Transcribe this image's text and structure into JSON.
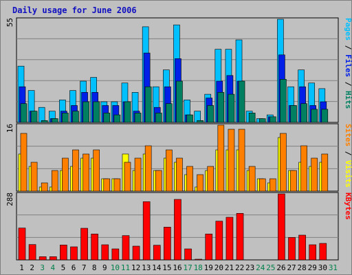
{
  "title": "Daily usage for June 2006",
  "colors": {
    "background": "#ffffff",
    "frame": "#c0c0c0",
    "plot_bg": "#c0c0c0",
    "grid": "#808080",
    "pages": "#008060",
    "files": "#0020e8",
    "hits": "#00c0ff",
    "sites": "#ff8000",
    "visits": "#ffff00",
    "kbytes": "#ff0000",
    "separator": "/",
    "weekday": "#000000",
    "weekend": "#00804a",
    "title": "#1010c0"
  },
  "chart_data": [
    {
      "type": "bar",
      "name": "hits-files-pages",
      "ymax_label": "55",
      "ylim": [
        0,
        55
      ],
      "side_labels": [
        {
          "text": "Pages",
          "color": "#00c0ff"
        },
        {
          "text": " / ",
          "color": "#000000"
        },
        {
          "text": "Files",
          "color": "#0020e8"
        },
        {
          "text": " / ",
          "color": "#000000"
        },
        {
          "text": "Hits",
          "color": "#008060"
        }
      ],
      "categories": [
        "1",
        "2",
        "3",
        "4",
        "5",
        "6",
        "7",
        "8",
        "9",
        "10",
        "11",
        "12",
        "13",
        "14",
        "15",
        "16",
        "17",
        "18",
        "19",
        "20",
        "21",
        "22",
        "23",
        "24",
        "25",
        "26",
        "27",
        "28",
        "29",
        "30",
        "31"
      ],
      "series": [
        {
          "key": "hits",
          "values": [
            30,
            17,
            8,
            6,
            12,
            17,
            22,
            24,
            11,
            11,
            21,
            16,
            51,
            19,
            28,
            52,
            12,
            6,
            15,
            39,
            39,
            44,
            6,
            2,
            4,
            55,
            19,
            28,
            21,
            18,
            0
          ]
        },
        {
          "key": "files",
          "values": [
            19,
            6,
            0,
            2,
            6,
            9,
            16,
            16,
            9,
            9,
            11,
            6,
            37,
            8,
            19,
            34,
            4,
            0,
            13,
            22,
            25,
            22,
            0,
            0,
            3,
            36,
            9,
            19,
            9,
            11,
            0
          ]
        },
        {
          "key": "pages",
          "values": [
            10,
            6,
            1,
            2,
            5,
            6,
            11,
            11,
            5,
            4,
            11,
            5,
            19,
            5,
            10,
            22,
            4,
            1,
            9,
            16,
            15,
            22,
            5,
            2,
            3,
            23,
            9,
            10,
            7,
            7,
            0
          ]
        }
      ]
    },
    {
      "type": "bar",
      "name": "visits-sites",
      "ymax_label": "16",
      "ylim": [
        0,
        16
      ],
      "side_labels": [
        {
          "text": "Sites",
          "color": "#ff8000"
        },
        {
          "text": " / ",
          "color": "#000000"
        },
        {
          "text": "Visits",
          "color": "#ffff00"
        }
      ],
      "categories": [
        "1",
        "2",
        "3",
        "4",
        "5",
        "6",
        "7",
        "8",
        "9",
        "10",
        "11",
        "12",
        "13",
        "14",
        "15",
        "16",
        "17",
        "18",
        "19",
        "20",
        "21",
        "22",
        "23",
        "24",
        "25",
        "26",
        "27",
        "28",
        "29",
        "30",
        "31"
      ],
      "series": [
        {
          "key": "visits",
          "values": [
            9,
            6,
            1,
            1,
            5,
            6,
            8,
            8,
            3,
            3,
            9,
            5,
            9,
            5,
            8,
            7,
            4,
            1,
            5,
            10,
            10,
            10,
            5,
            3,
            2,
            13,
            5,
            7,
            6,
            7,
            0
          ]
        },
        {
          "key": "sites",
          "values": [
            14,
            7,
            2,
            5,
            8,
            10,
            9,
            10,
            3,
            3,
            7,
            8,
            11,
            5,
            10,
            8,
            6,
            4,
            6,
            16,
            15,
            15,
            6,
            3,
            3,
            14,
            5,
            11,
            8,
            9,
            0
          ]
        }
      ]
    },
    {
      "type": "bar",
      "name": "kbytes",
      "ymax_label": "288",
      "ylim": [
        0,
        288
      ],
      "side_labels": [
        {
          "text": "KBytes",
          "color": "#ff0000"
        }
      ],
      "categories": [
        "1",
        "2",
        "3",
        "4",
        "5",
        "6",
        "7",
        "8",
        "9",
        "10",
        "11",
        "12",
        "13",
        "14",
        "15",
        "16",
        "17",
        "18",
        "19",
        "20",
        "21",
        "22",
        "23",
        "24",
        "25",
        "26",
        "27",
        "28",
        "29",
        "30",
        "31"
      ],
      "series": [
        {
          "key": "kbytes",
          "values": [
            139,
            67,
            14,
            14,
            65,
            57,
            138,
            113,
            66,
            48,
            106,
            60,
            254,
            64,
            143,
            264,
            48,
            3,
            113,
            169,
            186,
            203,
            0,
            0,
            0,
            288,
            98,
            108,
            66,
            72,
            0
          ]
        }
      ]
    }
  ],
  "day_labels": [
    {
      "text": "1",
      "weekend": false
    },
    {
      "text": "2",
      "weekend": false
    },
    {
      "text": "3",
      "weekend": true
    },
    {
      "text": "4",
      "weekend": true
    },
    {
      "text": "5",
      "weekend": false
    },
    {
      "text": "6",
      "weekend": false
    },
    {
      "text": "7",
      "weekend": false
    },
    {
      "text": "8",
      "weekend": false
    },
    {
      "text": "9",
      "weekend": false
    },
    {
      "text": "10",
      "weekend": true
    },
    {
      "text": "11",
      "weekend": true
    },
    {
      "text": "12",
      "weekend": false
    },
    {
      "text": "13",
      "weekend": false
    },
    {
      "text": "14",
      "weekend": false
    },
    {
      "text": "15",
      "weekend": false
    },
    {
      "text": "16",
      "weekend": false
    },
    {
      "text": "17",
      "weekend": true
    },
    {
      "text": "18",
      "weekend": true
    },
    {
      "text": "19",
      "weekend": false
    },
    {
      "text": "20",
      "weekend": false
    },
    {
      "text": "21",
      "weekend": false
    },
    {
      "text": "22",
      "weekend": false
    },
    {
      "text": "23",
      "weekend": false
    },
    {
      "text": "24",
      "weekend": true
    },
    {
      "text": "25",
      "weekend": true
    },
    {
      "text": "26",
      "weekend": false
    },
    {
      "text": "27",
      "weekend": false
    },
    {
      "text": "28",
      "weekend": false
    },
    {
      "text": "29",
      "weekend": false
    },
    {
      "text": "30",
      "weekend": false
    },
    {
      "text": "31",
      "weekend": true
    }
  ]
}
